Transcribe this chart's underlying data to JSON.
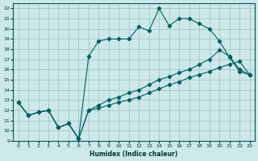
{
  "xlabel": "Humidex (Indice chaleur)",
  "bg_color": "#cce8e8",
  "grid_color": "#aacccc",
  "line_color": "#006060",
  "xlim": [
    -0.5,
    23.5
  ],
  "ylim": [
    9,
    22.5
  ],
  "x_ticks": [
    0,
    1,
    2,
    3,
    4,
    5,
    6,
    7,
    8,
    9,
    10,
    11,
    12,
    13,
    14,
    15,
    16,
    17,
    18,
    19,
    20,
    21,
    22,
    23
  ],
  "y_ticks": [
    9,
    10,
    11,
    12,
    13,
    14,
    15,
    16,
    17,
    18,
    19,
    20,
    21,
    22
  ],
  "series1_x": [
    0,
    1,
    2,
    3,
    4,
    5,
    6,
    7,
    8,
    9,
    10,
    11,
    12,
    13,
    14,
    15,
    16,
    17,
    18,
    19,
    20,
    21,
    22,
    23
  ],
  "series1_y": [
    12.8,
    11.5,
    11.8,
    12.0,
    10.3,
    10.7,
    9.2,
    17.3,
    18.8,
    19.0,
    19.0,
    19.0,
    20.2,
    19.8,
    22.0,
    20.3,
    21.0,
    21.0,
    20.5,
    20.0,
    18.8,
    17.2,
    15.8,
    15.5
  ],
  "series2_x": [
    0,
    1,
    2,
    3,
    4,
    5,
    6,
    7,
    8,
    9,
    10,
    11,
    12,
    13,
    14,
    15,
    16,
    17,
    18,
    19,
    20,
    21,
    22,
    23
  ],
  "series2_y": [
    12.8,
    11.5,
    11.8,
    12.0,
    10.3,
    10.7,
    9.2,
    12.0,
    12.5,
    13.0,
    13.3,
    13.7,
    14.0,
    14.5,
    15.0,
    15.3,
    15.7,
    16.0,
    16.5,
    17.0,
    17.9,
    17.3,
    16.0,
    15.5
  ],
  "series3_x": [
    0,
    1,
    2,
    3,
    4,
    5,
    6,
    7,
    8,
    9,
    10,
    11,
    12,
    13,
    14,
    15,
    16,
    17,
    18,
    19,
    20,
    21,
    22,
    23
  ],
  "series3_y": [
    12.8,
    11.5,
    11.8,
    12.0,
    10.3,
    10.7,
    9.2,
    12.0,
    12.2,
    12.5,
    12.8,
    13.0,
    13.3,
    13.7,
    14.1,
    14.5,
    14.8,
    15.2,
    15.5,
    15.8,
    16.2,
    16.5,
    16.8,
    15.5
  ]
}
